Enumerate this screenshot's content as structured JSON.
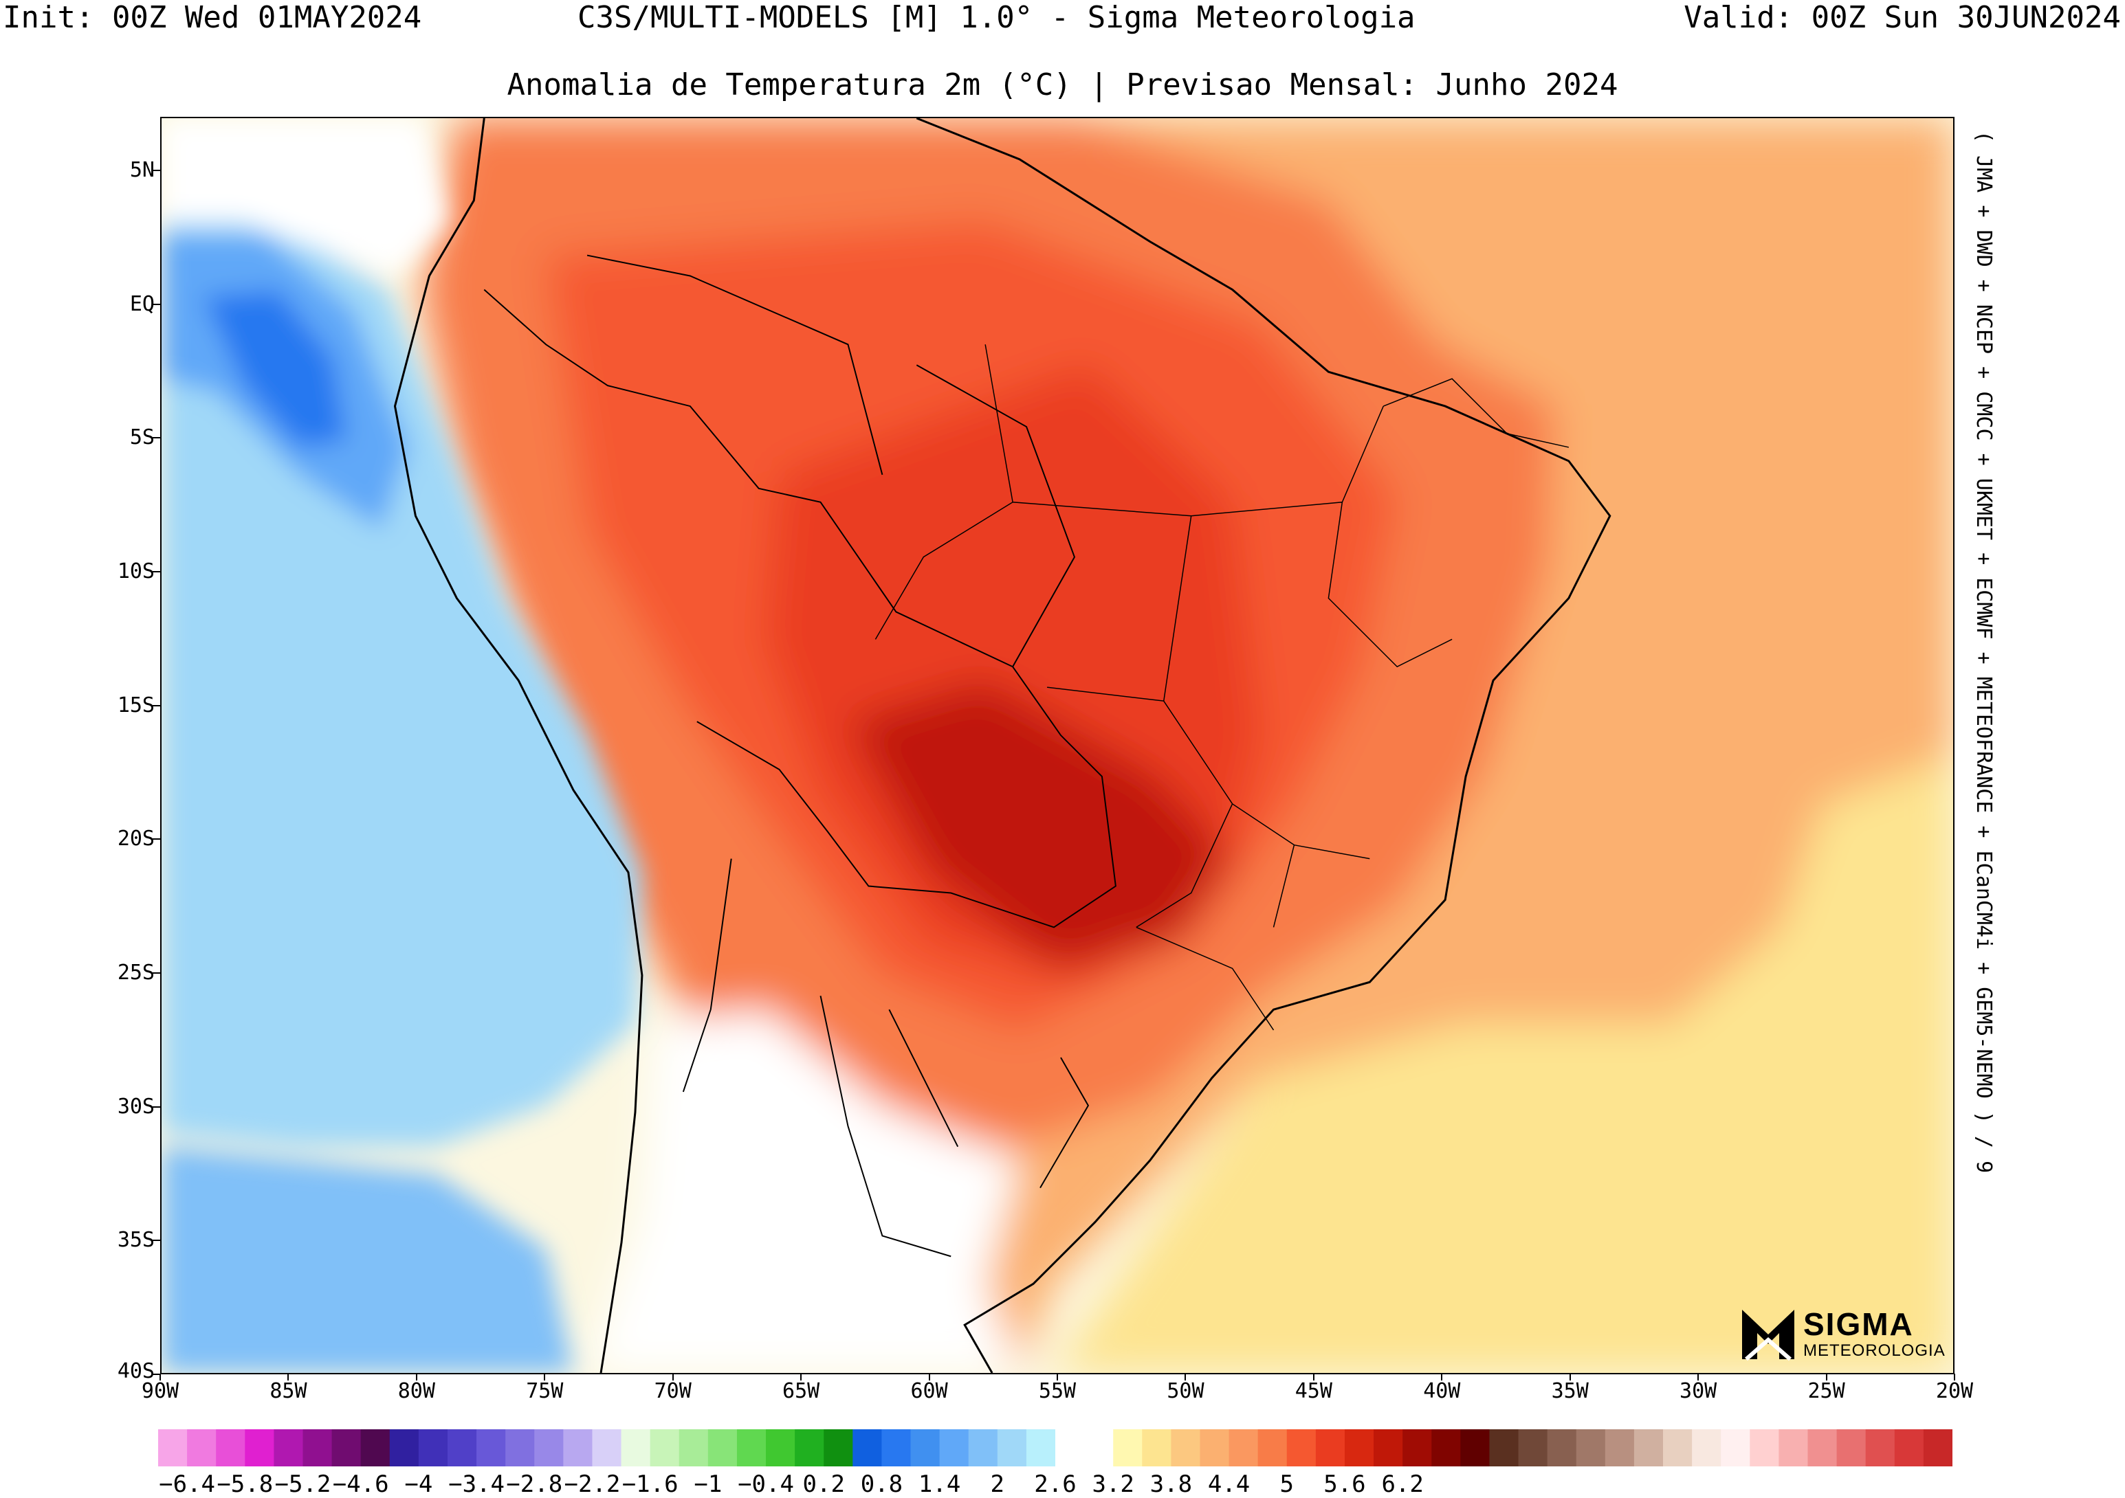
{
  "header": {
    "left": "Init: 00Z Wed 01MAY2024",
    "center": "C3S/MULTI-MODELS [M] 1.0° - Sigma Meteorologia",
    "right": "Valid: 00Z Sun 30JUN2024"
  },
  "title": "Anomalia de Temperatura 2m (°C) | Previsao Mensal: Junho 2024",
  "models_text": "( JMA + DWD + NCEP + CMCC + UKMET + ECMWF + METEOFRANCE + ECanCM4i + GEM5-NEMO ) / 9",
  "logo": {
    "word": "SIGMA",
    "sub": "METEOROLOGIA"
  },
  "axes": {
    "lat_labels": [
      "5N",
      "EQ",
      "5S",
      "10S",
      "15S",
      "20S",
      "25S",
      "30S",
      "35S",
      "40S"
    ],
    "lat_values": [
      5,
      0,
      -5,
      -10,
      -15,
      -20,
      -25,
      -30,
      -35,
      -40
    ],
    "lon_labels": [
      "90W",
      "85W",
      "80W",
      "75W",
      "70W",
      "65W",
      "60W",
      "55W",
      "50W",
      "45W",
      "40W",
      "35W",
      "30W",
      "25W",
      "20W"
    ],
    "lon_values": [
      -90,
      -85,
      -80,
      -75,
      -70,
      -65,
      -60,
      -55,
      -50,
      -45,
      -40,
      -35,
      -30,
      -25,
      -20
    ],
    "lat_range": [
      -40,
      7
    ],
    "lon_range": [
      -90,
      -20
    ]
  },
  "colorbar": {
    "labels": [
      "-6.4",
      "-5.8",
      "-5.2",
      "-4.6",
      "-4",
      "-3.4",
      "-2.8",
      "-2.2",
      "-1.6",
      "-1",
      "-0.4",
      "0.2",
      "0.8",
      "1.4",
      "2",
      "2.6",
      "3.2",
      "3.8",
      "4.4",
      "5",
      "5.6",
      "6.2"
    ],
    "colors": [
      "#f7a5e8",
      "#f07ae0",
      "#e84fd8",
      "#e020d0",
      "#b018b0",
      "#901090",
      "#700c70",
      "#500850",
      "#3020a0",
      "#4030b8",
      "#5040c8",
      "#6858d8",
      "#8070e0",
      "#9888e8",
      "#b8a8f0",
      "#d8d0f8",
      "#e8fae0",
      "#c8f4b8",
      "#a8ec98",
      "#88e478",
      "#60d850",
      "#40c830",
      "#20b020",
      "#109010",
      "#1060e0",
      "#2878f0",
      "#4090f0",
      "#60a8f8",
      "#80c0f8",
      "#a0d8f8",
      "#b8f0fc",
      "#ffffff",
      "#ffffff",
      "#fff8b0",
      "#fde490",
      "#fcc880",
      "#fbb070",
      "#fa9860",
      "#f87c48",
      "#f55830",
      "#ea3c20",
      "#d82810",
      "#c01808",
      "#a00c04",
      "#800400",
      "#600000",
      "#5a3020",
      "#704838",
      "#886050",
      "#a07868",
      "#b89080",
      "#d0b0a0",
      "#e8d0c0",
      "#f8e8e0",
      "#fff0f0",
      "#ffd0d0",
      "#f8b0b0",
      "#f09090",
      "#e87070",
      "#e05050",
      "#d83838",
      "#c82828"
    ],
    "start_value": -6.7,
    "step": 0.3
  }
}
